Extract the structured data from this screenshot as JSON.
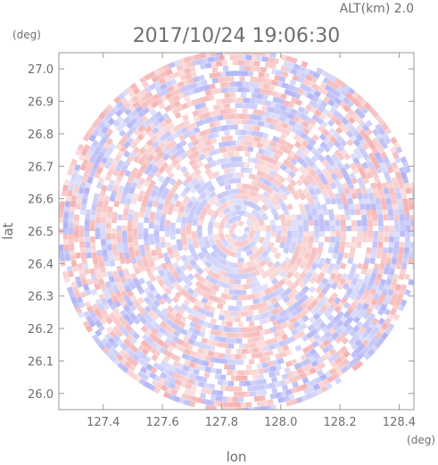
{
  "chart_data": {
    "type": "heatmap",
    "title": "2017/10/24 19:06:30",
    "altitude_label": "ALT(km) 2.0",
    "xlabel": "lon",
    "ylabel": "lat",
    "x_unit": "(deg)",
    "y_unit": "(deg)",
    "xlim": [
      127.25,
      128.45
    ],
    "ylim": [
      25.95,
      27.05
    ],
    "x_ticks": [
      127.4,
      127.6,
      127.8,
      128.0,
      128.2,
      128.4
    ],
    "x_tick_labels": [
      "127.4",
      "127.6",
      "127.8",
      "128.0",
      "128.2",
      "128.4"
    ],
    "y_ticks": [
      26.0,
      26.1,
      26.2,
      26.3,
      26.4,
      26.5,
      26.6,
      26.7,
      26.8,
      26.9,
      27.0
    ],
    "y_tick_labels": [
      "26.0",
      "26.1",
      "26.2",
      "26.3",
      "26.4",
      "26.5",
      "26.6",
      "26.7",
      "26.8",
      "26.9",
      "27.0"
    ],
    "radar_center": {
      "lon": 127.86,
      "lat": 26.5
    },
    "colors": {
      "positive": "#f08a8a",
      "negative": "#8a8ef0",
      "frame": "#9a9a9a"
    }
  }
}
